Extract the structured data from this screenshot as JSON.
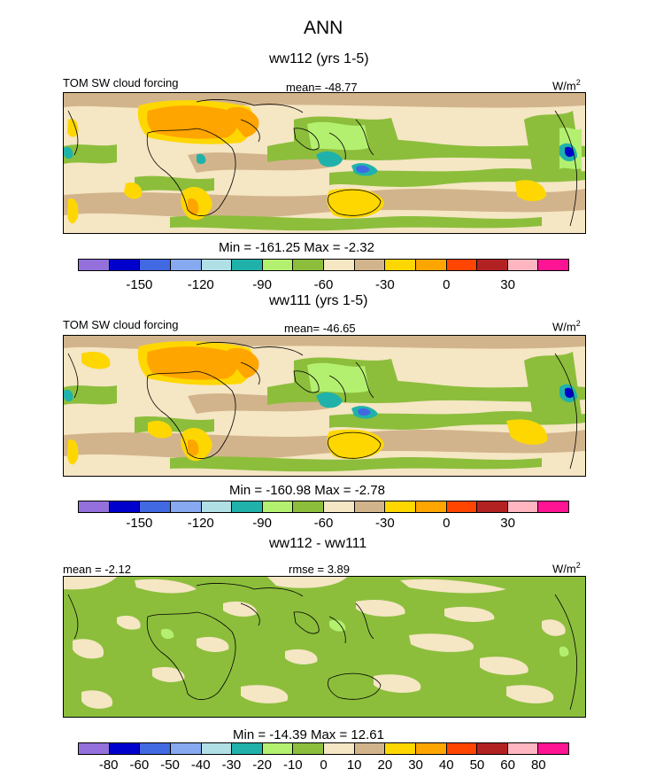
{
  "figure": {
    "title": "ANN"
  },
  "panels": [
    {
      "subtitle": "ww112 (yrs 1-5)",
      "left_label": "TOM SW cloud forcing",
      "center_label": "mean= -48.77",
      "right_label": "W/m",
      "right_label_sup": "2",
      "minmax": "Min = -161.25 Max =  -2.32",
      "colorbar": {
        "colors": [
          "#9370db",
          "#0000cd",
          "#4169e1",
          "#87a9f0",
          "#b0e0e6",
          "#20b2aa",
          "#b4f070",
          "#8cbe3c",
          "#f5e6c4",
          "#d2b48c",
          "#ffd700",
          "#ffa500",
          "#ff4500",
          "#b22222",
          "#ffb6c1",
          "#ff1493"
        ],
        "ticks": [
          "-150",
          "-120",
          "-90",
          "-60",
          "-30",
          "0",
          "30"
        ]
      }
    },
    {
      "subtitle": "ww111 (yrs 1-5)",
      "left_label": "TOM SW cloud forcing",
      "center_label": "mean= -46.65",
      "right_label": "W/m",
      "right_label_sup": "2",
      "minmax": "Min = -160.98 Max =  -2.78",
      "colorbar": {
        "colors": [
          "#9370db",
          "#0000cd",
          "#4169e1",
          "#87a9f0",
          "#b0e0e6",
          "#20b2aa",
          "#b4f070",
          "#8cbe3c",
          "#f5e6c4",
          "#d2b48c",
          "#ffd700",
          "#ffa500",
          "#ff4500",
          "#b22222",
          "#ffb6c1",
          "#ff1493"
        ],
        "ticks": [
          "-150",
          "-120",
          "-90",
          "-60",
          "-30",
          "0",
          "30"
        ]
      }
    },
    {
      "subtitle": "ww112 - ww111",
      "left_label": "mean =  -2.12",
      "center_label": "rmse =   3.89",
      "right_label": "W/m",
      "right_label_sup": "2",
      "minmax": "Min = -14.39 Max =  12.61",
      "colorbar": {
        "colors": [
          "#9370db",
          "#0000cd",
          "#4169e1",
          "#87a9f0",
          "#b0e0e6",
          "#20b2aa",
          "#b4f070",
          "#8cbe3c",
          "#f5e6c4",
          "#d2b48c",
          "#ffd700",
          "#ffa500",
          "#ff4500",
          "#b22222",
          "#ffb6c1",
          "#ff1493"
        ],
        "ticks": [
          "-80",
          "-60",
          "-50",
          "-40",
          "-30",
          "-20",
          "-10",
          "0",
          "10",
          "20",
          "30",
          "40",
          "50",
          "60",
          "80"
        ]
      }
    }
  ]
}
